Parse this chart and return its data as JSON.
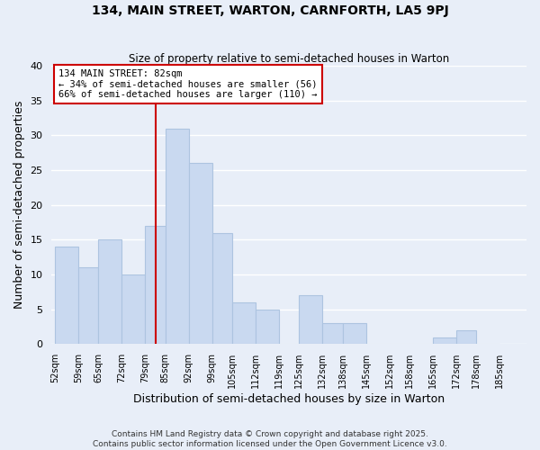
{
  "title": "134, MAIN STREET, WARTON, CARNFORTH, LA5 9PJ",
  "subtitle": "Size of property relative to semi-detached houses in Warton",
  "xlabel": "Distribution of semi-detached houses by size in Warton",
  "ylabel": "Number of semi-detached properties",
  "bins": [
    52,
    59,
    65,
    72,
    79,
    85,
    92,
    99,
    105,
    112,
    119,
    125,
    132,
    138,
    145,
    152,
    158,
    165,
    172,
    178,
    185
  ],
  "counts": [
    14,
    11,
    15,
    10,
    17,
    31,
    26,
    16,
    6,
    5,
    0,
    7,
    3,
    3,
    0,
    0,
    0,
    1,
    2,
    0
  ],
  "bar_color": "#c9d9f0",
  "bar_edge_color": "#adc4e0",
  "subject_value": 82,
  "subject_line_color": "#cc0000",
  "annotation_title": "134 MAIN STREET: 82sqm",
  "annotation_line1": "← 34% of semi-detached houses are smaller (56)",
  "annotation_line2": "66% of semi-detached houses are larger (110) →",
  "annotation_box_color": "#ffffff",
  "annotation_box_edge": "#cc0000",
  "ylim": [
    0,
    40
  ],
  "yticks": [
    0,
    5,
    10,
    15,
    20,
    25,
    30,
    35,
    40
  ],
  "tick_labels": [
    "52sqm",
    "59sqm",
    "65sqm",
    "72sqm",
    "79sqm",
    "85sqm",
    "92sqm",
    "99sqm",
    "105sqm",
    "112sqm",
    "119sqm",
    "125sqm",
    "132sqm",
    "138sqm",
    "145sqm",
    "152sqm",
    "158sqm",
    "165sqm",
    "172sqm",
    "178sqm",
    "185sqm"
  ],
  "footer1": "Contains HM Land Registry data © Crown copyright and database right 2025.",
  "footer2": "Contains public sector information licensed under the Open Government Licence v3.0.",
  "background_color": "#e8eef8",
  "grid_color": "#ffffff"
}
